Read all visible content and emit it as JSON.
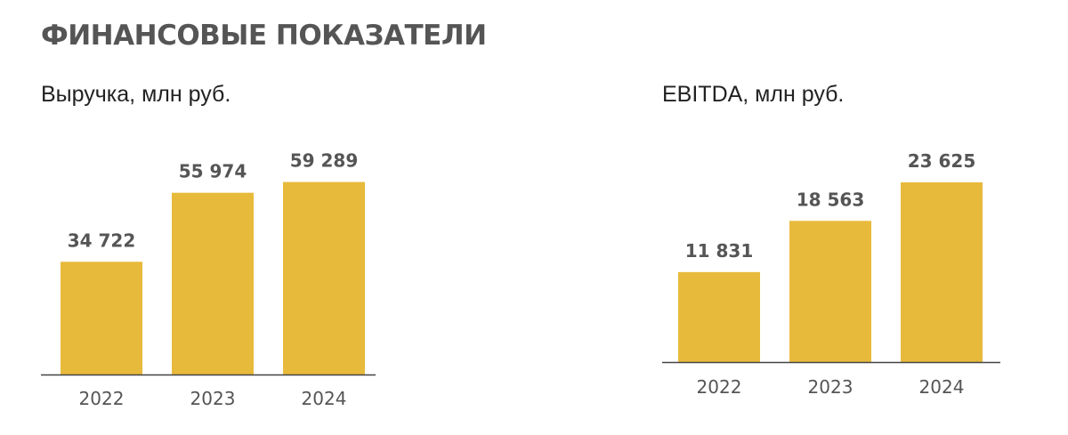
{
  "page": {
    "title": "ФИНАНСОВЫЕ ПОКАЗАТЕЛИ"
  },
  "colors": {
    "bar": "#E8BA3B",
    "axis": "#444444",
    "value_text": "#555555",
    "title_text": "#555555"
  },
  "chart_data": [
    {
      "type": "bar",
      "title": "Выручка, млн руб.",
      "categories": [
        "2022",
        "2023",
        "2024"
      ],
      "values": [
        34722,
        55974,
        59289
      ],
      "value_labels": [
        "34 722",
        "55 974",
        "59 289"
      ],
      "ylim": [
        0,
        60000
      ],
      "grid": false
    },
    {
      "type": "bar",
      "title": "EBITDA, млн руб.",
      "categories": [
        "2022",
        "2023",
        "2024"
      ],
      "values": [
        11831,
        18563,
        23625
      ],
      "value_labels": [
        "11 831",
        "18 563",
        "23 625"
      ],
      "ylim": [
        0,
        23625
      ],
      "grid": false
    }
  ]
}
